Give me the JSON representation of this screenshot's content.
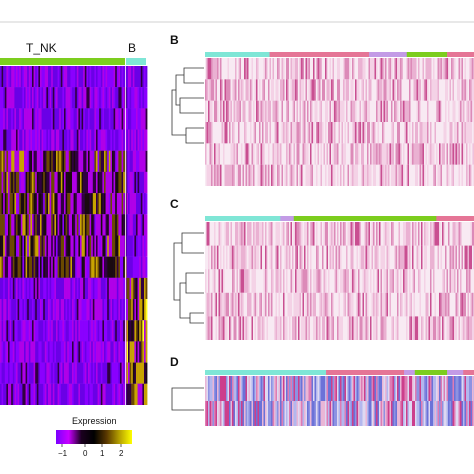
{
  "panel_A": {
    "group_labels": [
      "T_NK",
      "B"
    ],
    "group_colors": [
      "#7ccd1e",
      "#7fe6d6"
    ],
    "num_genes": 16,
    "legend": {
      "title": "Expression",
      "ticks": [
        "−1",
        "0",
        "1",
        "2"
      ],
      "colors": [
        "#7a00ff",
        "#c800ff",
        "#1a001f",
        "#000000",
        "#5a3800",
        "#b5a000",
        "#ffff00"
      ]
    }
  },
  "panel_B": {
    "letter": "B",
    "annotation_segments": [
      {
        "color": "#7fe6d6",
        "frac": 0.24
      },
      {
        "color": "#e57596",
        "frac": 0.37
      },
      {
        "color": "#c39be6",
        "frac": 0.14
      },
      {
        "color": "#7ccd1e",
        "frac": 0.15
      },
      {
        "color": "#e57596",
        "frac": 0.1
      }
    ],
    "rows": 6,
    "palette": "pink"
  },
  "panel_C": {
    "letter": "C",
    "annotation_segments": [
      {
        "color": "#7fe6d6",
        "frac": 0.28
      },
      {
        "color": "#c39be6",
        "frac": 0.05
      },
      {
        "color": "#7ccd1e",
        "frac": 0.53
      },
      {
        "color": "#e57596",
        "frac": 0.14
      }
    ],
    "rows": 5,
    "palette": "pink"
  },
  "panel_D": {
    "letter": "D",
    "annotation_segments": [
      {
        "color": "#7fe6d6",
        "frac": 0.45
      },
      {
        "color": "#e57596",
        "frac": 0.29
      },
      {
        "color": "#c39be6",
        "frac": 0.04
      },
      {
        "color": "#7ccd1e",
        "frac": 0.12
      },
      {
        "color": "#c39be6",
        "frac": 0.06
      },
      {
        "color": "#e57596",
        "frac": 0.04
      }
    ],
    "rows": 2,
    "palette": "blue-pink"
  },
  "chart_data": [
    {
      "type": "heatmap",
      "panel": "A",
      "column_groups": [
        "T_NK",
        "B"
      ],
      "legend_title": "Expression",
      "color_scale": {
        "min": -1,
        "max": 2,
        "ticks": [
          -1,
          0,
          1,
          2
        ]
      }
    },
    {
      "type": "heatmap",
      "panel": "B",
      "dendrogram": "left"
    },
    {
      "type": "heatmap",
      "panel": "C",
      "dendrogram": "left"
    },
    {
      "type": "heatmap",
      "panel": "D",
      "dendrogram": "left"
    }
  ]
}
